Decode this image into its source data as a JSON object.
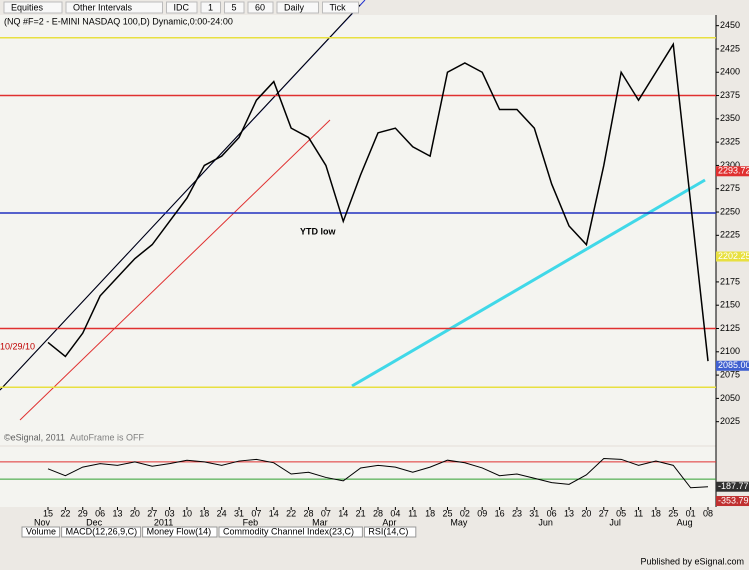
{
  "toolbar": [
    "Equities",
    "Other Intervals",
    "IDC",
    "1",
    "5",
    "60",
    "Daily",
    "Tick"
  ],
  "chart_data": {
    "type": "line",
    "title": "(NQ #F=2 - E-MINI NASDAQ 100,D) Dynamic,0:00-24:00",
    "start_label": "10/29/10",
    "annotations": [
      "YTD low",
      "AutoFrame is OFF",
      "©eSignal, 2011"
    ],
    "categories": [
      "15",
      "22",
      "29",
      "06",
      "13",
      "20",
      "27",
      "03",
      "10",
      "18",
      "24",
      "31",
      "07",
      "14",
      "22",
      "28",
      "07",
      "14",
      "21",
      "28",
      "04",
      "11",
      "18",
      "25",
      "02",
      "09",
      "16",
      "23",
      "31",
      "06",
      "13",
      "20",
      "27",
      "05",
      "11",
      "18",
      "25",
      "01",
      "08"
    ],
    "months": [
      "Nov",
      null,
      null,
      "Dec",
      null,
      null,
      null,
      "2011",
      null,
      null,
      null,
      null,
      "Feb",
      null,
      null,
      null,
      "Mar",
      null,
      null,
      null,
      "Apr",
      null,
      null,
      null,
      "May",
      null,
      null,
      null,
      null,
      "Jun",
      null,
      null,
      null,
      "Jul",
      null,
      null,
      null,
      "Aug",
      null
    ],
    "series": [
      {
        "color": "#000000",
        "values": [
          2110,
          2095,
          2120,
          2160,
          2180,
          2200,
          2215,
          2240,
          2265,
          2300,
          2310,
          2330,
          2370,
          2390,
          2340,
          2330,
          2300,
          2240,
          2290,
          2335,
          2340,
          2320,
          2310,
          2400,
          2410,
          2400,
          2360,
          2360,
          2340,
          2280,
          2235,
          2215,
          2300,
          2400,
          2370,
          2400,
          2430,
          2260,
          2090
        ]
      }
    ],
    "ylim": [
      2015,
      2455
    ],
    "yticks": [
      2025,
      2050,
      2075,
      2100,
      2125,
      2150,
      2175,
      2200,
      2225,
      2250,
      2275,
      2300,
      2325,
      2350,
      2375,
      2400,
      2425,
      2450
    ],
    "levels": [
      {
        "value": 2437,
        "color": "#e8e040"
      },
      {
        "value": 2375,
        "color": "#e03030"
      },
      {
        "value": 2249,
        "color": "#2030c0"
      },
      {
        "value": 2125,
        "color": "#e03030"
      },
      {
        "value": 2062,
        "color": "#e8e040"
      }
    ],
    "price_markers": [
      {
        "value": 2293.72,
        "color": "#e03030"
      },
      {
        "value": 2202.25,
        "color": "#e8e040"
      },
      {
        "value": 2085,
        "label": "2085.00",
        "color": "#4060d0"
      }
    ],
    "indicator": {
      "color": "#000000",
      "values": [
        20,
        -60,
        40,
        80,
        60,
        100,
        50,
        80,
        120,
        100,
        60,
        110,
        130,
        90,
        -40,
        -20,
        -80,
        -120,
        30,
        60,
        40,
        -20,
        40,
        120,
        90,
        30,
        -60,
        -40,
        -90,
        -140,
        -160,
        -50,
        140,
        130,
        60,
        110,
        60,
        -200,
        -188
      ],
      "ylim": [
        -400,
        250
      ],
      "levels": [
        {
          "value": 100,
          "color": "#e03030"
        },
        {
          "value": -100,
          "color": "#30a030"
        }
      ],
      "markers": [
        -187.77,
        -353.79
      ]
    }
  },
  "tabs": [
    "Volume",
    "MACD(12,26,9,C)",
    "Money Flow(14)",
    "Commodity Channel Index(23,C)",
    "RSI(14,C)"
  ],
  "footer": "Published by eSignal.com"
}
